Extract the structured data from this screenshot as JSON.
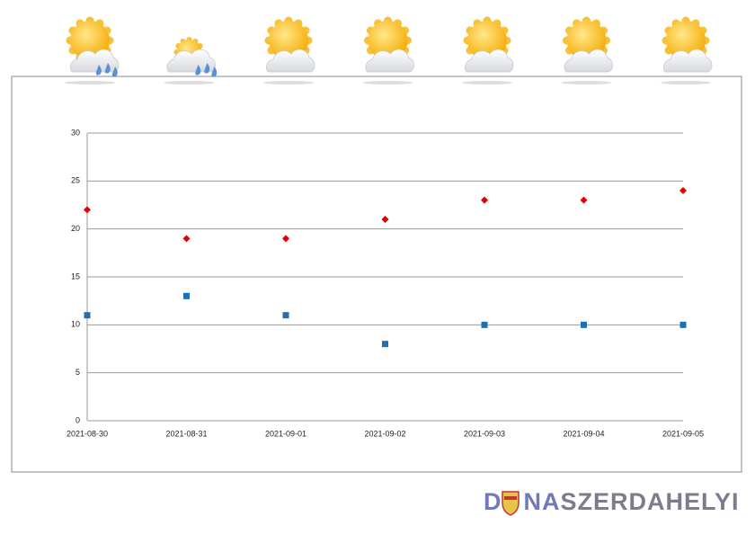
{
  "chart_data": {
    "type": "scatter",
    "categories": [
      "2021-08-30",
      "2021-08-31",
      "2021-09-01",
      "2021-09-02",
      "2021-09-03",
      "2021-09-04",
      "2021-09-05"
    ],
    "series": [
      {
        "color": "#e00000",
        "marker": "diamond",
        "values": [
          22,
          19,
          19,
          21,
          23,
          23,
          24
        ]
      },
      {
        "color": "#1f6fb5",
        "marker": "square",
        "values": [
          11,
          13,
          11,
          8,
          10,
          10,
          10
        ]
      }
    ],
    "ylim": [
      0,
      30
    ],
    "yticks": [
      0,
      5,
      10,
      15,
      20,
      25,
      30
    ],
    "grid": true
  },
  "logo": {
    "parts": [
      "D",
      "NA",
      "SZERDAHELYI"
    ]
  }
}
